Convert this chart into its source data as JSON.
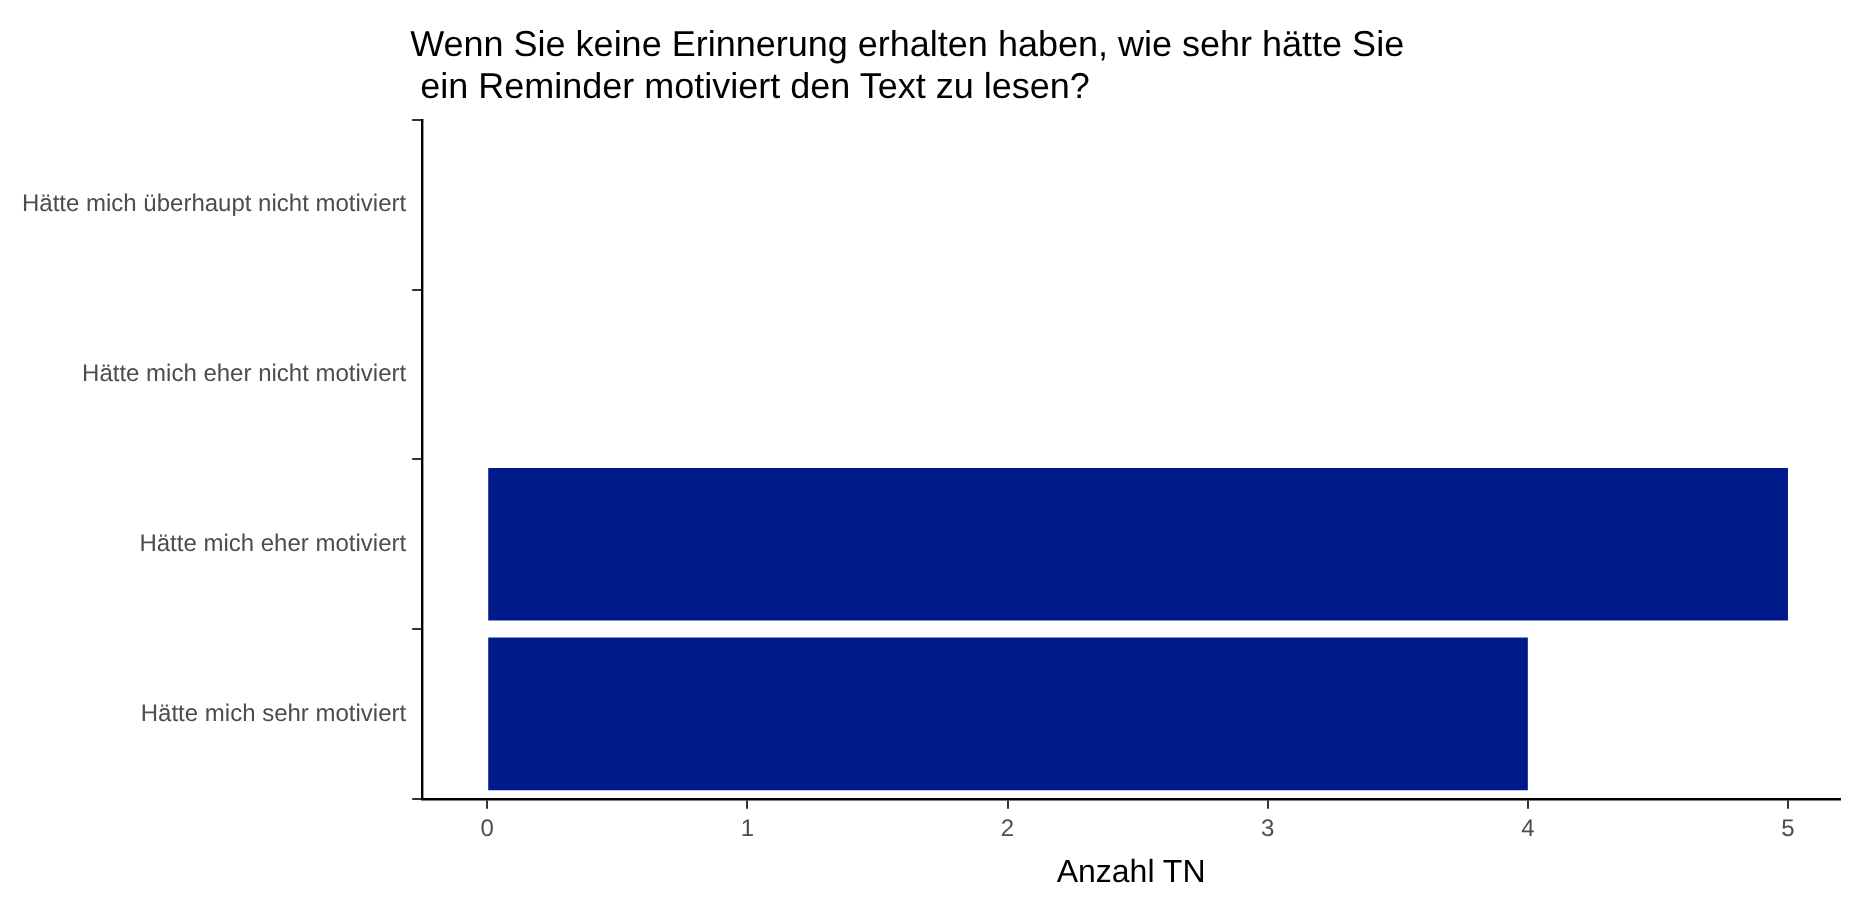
{
  "chart_data": {
    "type": "bar",
    "orientation": "horizontal",
    "title": "Wenn Sie keine Erinnerung erhalten haben, wie sehr hätte Sie\n ein Reminder motiviert den Text zu lesen?",
    "xlabel": "Anzahl TN",
    "categories": [
      "Hätte mich überhaupt nicht motiviert",
      "Hätte mich eher nicht motiviert",
      "Hätte mich eher motiviert",
      "Hätte mich sehr motiviert"
    ],
    "values": [
      0,
      0,
      5,
      4
    ],
    "color": "#001a8b",
    "xlim": [
      -0.25,
      5.2
    ],
    "xticks": [
      0,
      1,
      2,
      3,
      4,
      5
    ],
    "grid": false,
    "legend": false
  }
}
